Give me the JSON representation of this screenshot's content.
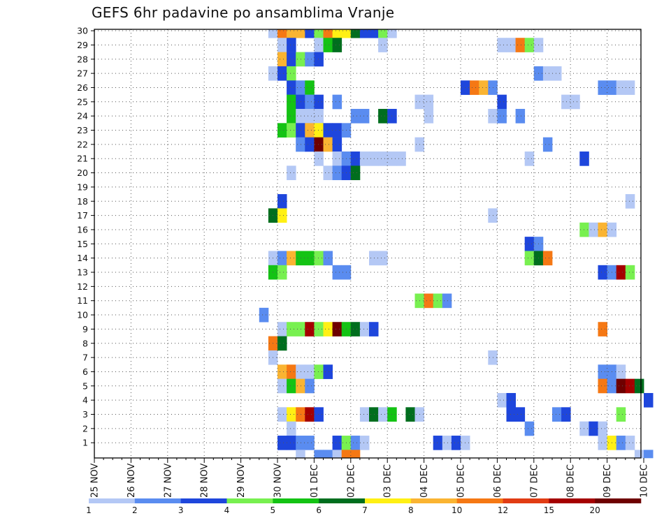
{
  "chart_data": {
    "type": "heatmap",
    "title": "GEFS 6hr padavine po ansamblima Vranje",
    "xlabel": "",
    "ylabel": "",
    "ylim": [
      1,
      30
    ],
    "y_ticks": [
      "1",
      "2",
      "3",
      "4",
      "5",
      "6",
      "7",
      "8",
      "9",
      "10",
      "11",
      "12",
      "13",
      "14",
      "15",
      "16",
      "17",
      "18",
      "19",
      "20",
      "21",
      "22",
      "23",
      "24",
      "25",
      "26",
      "27",
      "28",
      "29",
      "30"
    ],
    "x_start": "25 NOV",
    "x_step_hours": 6,
    "x_tick_labels": [
      "25 NOV",
      "26 NOV",
      "27 NOV",
      "28 NOV",
      "29 NOV",
      "30 NOV",
      "01 DEC",
      "02 DEC",
      "03 DEC",
      "04 DEC",
      "05 DEC",
      "06 DEC",
      "07 DEC",
      "08 DEC",
      "09 DEC",
      "10 DEC"
    ],
    "grid": true,
    "colorbar": {
      "labels": [
        "1",
        "2",
        "3",
        "4",
        "5",
        "6",
        "7",
        "8",
        "10",
        "12",
        "15",
        "20"
      ],
      "colors": [
        "#b4c8f5",
        "#5a8cf0",
        "#1e46dc",
        "#78f050",
        "#14c314",
        "#006e1e",
        "#fff014",
        "#fab432",
        "#f57814",
        "#e13c14",
        "#a50000",
        "#6e0000"
      ]
    },
    "cells": [
      [
        30,
        "29 NOV 18Z",
        1
      ],
      [
        30,
        "30 NOV 00Z",
        10
      ],
      [
        30,
        "30 NOV 06Z",
        8
      ],
      [
        30,
        "30 NOV 12Z",
        8
      ],
      [
        30,
        "30 NOV 18Z",
        3
      ],
      [
        30,
        "01 DEC 00Z",
        4
      ],
      [
        30,
        "01 DEC 06Z",
        10
      ],
      [
        30,
        "01 DEC 12Z",
        7
      ],
      [
        30,
        "01 DEC 18Z",
        7
      ],
      [
        30,
        "02 DEC 00Z",
        6
      ],
      [
        30,
        "02 DEC 06Z",
        3
      ],
      [
        30,
        "02 DEC 12Z",
        3
      ],
      [
        30,
        "02 DEC 18Z",
        4
      ],
      [
        30,
        "03 DEC 00Z",
        1
      ],
      [
        29,
        "30 NOV 00Z",
        1
      ],
      [
        29,
        "30 NOV 06Z",
        3
      ],
      [
        29,
        "01 DEC 00Z",
        1
      ],
      [
        29,
        "01 DEC 06Z",
        5
      ],
      [
        29,
        "01 DEC 12Z",
        6
      ],
      [
        29,
        "02 DEC 18Z",
        1
      ],
      [
        29,
        "06 DEC 00Z",
        1
      ],
      [
        29,
        "06 DEC 06Z",
        1
      ],
      [
        29,
        "06 DEC 12Z",
        10
      ],
      [
        29,
        "06 DEC 18Z",
        4
      ],
      [
        29,
        "07 DEC 00Z",
        1
      ],
      [
        28,
        "30 NOV 00Z",
        8
      ],
      [
        28,
        "30 NOV 06Z",
        3
      ],
      [
        28,
        "30 NOV 12Z",
        4
      ],
      [
        28,
        "30 NOV 18Z",
        2
      ],
      [
        28,
        "01 DEC 00Z",
        3
      ],
      [
        27,
        "29 NOV 18Z",
        1
      ],
      [
        27,
        "30 NOV 00Z",
        3
      ],
      [
        27,
        "30 NOV 06Z",
        4
      ],
      [
        27,
        "07 DEC 00Z",
        2
      ],
      [
        27,
        "07 DEC 06Z",
        1
      ],
      [
        27,
        "07 DEC 12Z",
        1
      ],
      [
        26,
        "30 NOV 06Z",
        3
      ],
      [
        26,
        "30 NOV 12Z",
        2
      ],
      [
        26,
        "30 NOV 18Z",
        5
      ],
      [
        26,
        "05 DEC 00Z",
        3
      ],
      [
        26,
        "05 DEC 06Z",
        10
      ],
      [
        26,
        "05 DEC 12Z",
        8
      ],
      [
        26,
        "05 DEC 18Z",
        2
      ],
      [
        26,
        "08 DEC 18Z",
        2
      ],
      [
        26,
        "09 DEC 00Z",
        2
      ],
      [
        26,
        "09 DEC 06Z",
        1
      ],
      [
        26,
        "09 DEC 12Z",
        1
      ],
      [
        25,
        "30 NOV 06Z",
        5
      ],
      [
        25,
        "30 NOV 12Z",
        3
      ],
      [
        25,
        "30 NOV 18Z",
        2
      ],
      [
        25,
        "01 DEC 00Z",
        3
      ],
      [
        25,
        "01 DEC 12Z",
        2
      ],
      [
        25,
        "03 DEC 18Z",
        1
      ],
      [
        25,
        "04 DEC 00Z",
        1
      ],
      [
        25,
        "06 DEC 00Z",
        3
      ],
      [
        25,
        "07 DEC 18Z",
        1
      ],
      [
        25,
        "08 DEC 00Z",
        1
      ],
      [
        24,
        "30 NOV 06Z",
        5
      ],
      [
        24,
        "30 NOV 12Z",
        1
      ],
      [
        24,
        "30 NOV 18Z",
        1
      ],
      [
        24,
        "01 DEC 00Z",
        1
      ],
      [
        24,
        "02 DEC 00Z",
        2
      ],
      [
        24,
        "02 DEC 06Z",
        2
      ],
      [
        24,
        "02 DEC 18Z",
        6
      ],
      [
        24,
        "03 DEC 00Z",
        3
      ],
      [
        24,
        "04 DEC 00Z",
        1
      ],
      [
        24,
        "05 DEC 18Z",
        1
      ],
      [
        24,
        "06 DEC 00Z",
        2
      ],
      [
        24,
        "06 DEC 12Z",
        2
      ],
      [
        23,
        "30 NOV 00Z",
        5
      ],
      [
        23,
        "30 NOV 06Z",
        4
      ],
      [
        23,
        "30 NOV 12Z",
        3
      ],
      [
        23,
        "30 NOV 18Z",
        8
      ],
      [
        23,
        "01 DEC 00Z",
        7
      ],
      [
        23,
        "01 DEC 06Z",
        3
      ],
      [
        23,
        "01 DEC 12Z",
        3
      ],
      [
        23,
        "01 DEC 18Z",
        2
      ],
      [
        22,
        "30 NOV 12Z",
        2
      ],
      [
        22,
        "30 NOV 18Z",
        3
      ],
      [
        22,
        "01 DEC 00Z",
        20
      ],
      [
        22,
        "01 DEC 06Z",
        8
      ],
      [
        22,
        "01 DEC 12Z",
        3
      ],
      [
        22,
        "03 DEC 18Z",
        1
      ],
      [
        22,
        "07 DEC 06Z",
        2
      ],
      [
        21,
        "01 DEC 00Z",
        1
      ],
      [
        21,
        "01 DEC 12Z",
        1
      ],
      [
        21,
        "01 DEC 18Z",
        2
      ],
      [
        21,
        "02 DEC 00Z",
        3
      ],
      [
        21,
        "02 DEC 06Z",
        1
      ],
      [
        21,
        "02 DEC 12Z",
        1
      ],
      [
        21,
        "02 DEC 18Z",
        1
      ],
      [
        21,
        "03 DEC 00Z",
        1
      ],
      [
        21,
        "03 DEC 06Z",
        1
      ],
      [
        21,
        "06 DEC 18Z",
        1
      ],
      [
        21,
        "08 DEC 06Z",
        3
      ],
      [
        20,
        "30 NOV 06Z",
        1
      ],
      [
        20,
        "01 DEC 06Z",
        1
      ],
      [
        20,
        "01 DEC 12Z",
        2
      ],
      [
        20,
        "01 DEC 18Z",
        3
      ],
      [
        20,
        "02 DEC 00Z",
        6
      ],
      [
        18,
        "30 NOV 00Z",
        3
      ],
      [
        18,
        "09 DEC 12Z",
        1
      ],
      [
        17,
        "29 NOV 18Z",
        6
      ],
      [
        17,
        "30 NOV 00Z",
        7
      ],
      [
        17,
        "05 DEC 18Z",
        1
      ],
      [
        16,
        "08 DEC 06Z",
        4
      ],
      [
        16,
        "08 DEC 12Z",
        1
      ],
      [
        16,
        "08 DEC 18Z",
        8
      ],
      [
        16,
        "09 DEC 00Z",
        1
      ],
      [
        15,
        "06 DEC 18Z",
        3
      ],
      [
        15,
        "07 DEC 00Z",
        2
      ],
      [
        14,
        "29 NOV 18Z",
        1
      ],
      [
        14,
        "30 NOV 00Z",
        2
      ],
      [
        14,
        "30 NOV 06Z",
        8
      ],
      [
        14,
        "30 NOV 12Z",
        5
      ],
      [
        14,
        "30 NOV 18Z",
        5
      ],
      [
        14,
        "01 DEC 00Z",
        4
      ],
      [
        14,
        "01 DEC 06Z",
        2
      ],
      [
        14,
        "02 DEC 12Z",
        1
      ],
      [
        14,
        "02 DEC 18Z",
        1
      ],
      [
        14,
        "06 DEC 18Z",
        4
      ],
      [
        14,
        "07 DEC 00Z",
        6
      ],
      [
        14,
        "07 DEC 06Z",
        10
      ],
      [
        13,
        "29 NOV 18Z",
        5
      ],
      [
        13,
        "30 NOV 00Z",
        4
      ],
      [
        13,
        "01 DEC 12Z",
        2
      ],
      [
        13,
        "01 DEC 18Z",
        2
      ],
      [
        13,
        "08 DEC 18Z",
        3
      ],
      [
        13,
        "09 DEC 00Z",
        2
      ],
      [
        13,
        "09 DEC 06Z",
        15
      ],
      [
        13,
        "09 DEC 12Z",
        4
      ],
      [
        11,
        "03 DEC 18Z",
        4
      ],
      [
        11,
        "04 DEC 00Z",
        10
      ],
      [
        11,
        "04 DEC 06Z",
        4
      ],
      [
        11,
        "04 DEC 12Z",
        2
      ],
      [
        10,
        "29 NOV 12Z",
        2
      ],
      [
        9,
        "30 NOV 00Z",
        1
      ],
      [
        9,
        "30 NOV 06Z",
        4
      ],
      [
        9,
        "30 NOV 12Z",
        4
      ],
      [
        9,
        "30 NOV 18Z",
        15
      ],
      [
        9,
        "01 DEC 00Z",
        4
      ],
      [
        9,
        "01 DEC 06Z",
        7
      ],
      [
        9,
        "01 DEC 12Z",
        20
      ],
      [
        9,
        "01 DEC 18Z",
        5
      ],
      [
        9,
        "02 DEC 00Z",
        6
      ],
      [
        9,
        "02 DEC 06Z",
        1
      ],
      [
        9,
        "02 DEC 12Z",
        3
      ],
      [
        9,
        "08 DEC 18Z",
        10
      ],
      [
        8,
        "29 NOV 18Z",
        10
      ],
      [
        8,
        "30 NOV 00Z",
        6
      ],
      [
        7,
        "29 NOV 18Z",
        1
      ],
      [
        7,
        "05 DEC 18Z",
        1
      ],
      [
        6,
        "30 NOV 00Z",
        8
      ],
      [
        6,
        "30 NOV 06Z",
        10
      ],
      [
        6,
        "30 NOV 12Z",
        1
      ],
      [
        6,
        "30 NOV 18Z",
        1
      ],
      [
        6,
        "01 DEC 00Z",
        4
      ],
      [
        6,
        "01 DEC 06Z",
        3
      ],
      [
        6,
        "08 DEC 18Z",
        2
      ],
      [
        6,
        "09 DEC 00Z",
        2
      ],
      [
        6,
        "09 DEC 06Z",
        1
      ],
      [
        5,
        "30 NOV 00Z",
        1
      ],
      [
        5,
        "30 NOV 06Z",
        5
      ],
      [
        5,
        "30 NOV 12Z",
        8
      ],
      [
        5,
        "30 NOV 18Z",
        2
      ],
      [
        5,
        "08 DEC 18Z",
        10
      ],
      [
        5,
        "09 DEC 00Z",
        2
      ],
      [
        5,
        "09 DEC 06Z",
        20
      ],
      [
        5,
        "09 DEC 12Z",
        15
      ],
      [
        5,
        "09 DEC 18Z",
        6
      ],
      [
        4,
        "06 DEC 00Z",
        1
      ],
      [
        4,
        "06 DEC 06Z",
        3
      ],
      [
        4,
        "10 DEC 00Z",
        3
      ],
      [
        3,
        "30 NOV 00Z",
        1
      ],
      [
        3,
        "30 NOV 06Z",
        7
      ],
      [
        3,
        "30 NOV 12Z",
        10
      ],
      [
        3,
        "30 NOV 18Z",
        15
      ],
      [
        3,
        "01 DEC 00Z",
        3
      ],
      [
        3,
        "02 DEC 06Z",
        1
      ],
      [
        3,
        "02 DEC 12Z",
        6
      ],
      [
        3,
        "02 DEC 18Z",
        1
      ],
      [
        3,
        "03 DEC 00Z",
        5
      ],
      [
        3,
        "03 DEC 12Z",
        6
      ],
      [
        3,
        "03 DEC 18Z",
        1
      ],
      [
        3,
        "06 DEC 06Z",
        3
      ],
      [
        3,
        "06 DEC 12Z",
        3
      ],
      [
        3,
        "07 DEC 12Z",
        2
      ],
      [
        3,
        "07 DEC 18Z",
        3
      ],
      [
        3,
        "09 DEC 06Z",
        4
      ],
      [
        2,
        "30 NOV 06Z",
        1
      ],
      [
        2,
        "06 DEC 18Z",
        2
      ],
      [
        2,
        "08 DEC 06Z",
        1
      ],
      [
        2,
        "08 DEC 12Z",
        3
      ],
      [
        2,
        "08 DEC 18Z",
        1
      ],
      [
        1,
        "30 NOV 00Z",
        3
      ],
      [
        1,
        "30 NOV 06Z",
        3
      ],
      [
        1,
        "30 NOV 12Z",
        2
      ],
      [
        1,
        "30 NOV 18Z",
        2
      ],
      [
        1,
        "01 DEC 12Z",
        3
      ],
      [
        1,
        "01 DEC 18Z",
        4
      ],
      [
        1,
        "02 DEC 00Z",
        2
      ],
      [
        1,
        "02 DEC 06Z",
        1
      ],
      [
        1,
        "04 DEC 06Z",
        3
      ],
      [
        1,
        "04 DEC 12Z",
        1
      ],
      [
        1,
        "04 DEC 18Z",
        3
      ],
      [
        1,
        "05 DEC 00Z",
        1
      ],
      [
        1,
        "08 DEC 18Z",
        1
      ],
      [
        1,
        "09 DEC 00Z",
        7
      ],
      [
        1,
        "09 DEC 06Z",
        2
      ],
      [
        1,
        "09 DEC 12Z",
        1
      ],
      [
        0,
        "30 NOV 12Z",
        1
      ],
      [
        0,
        "01 DEC 00Z",
        2
      ],
      [
        0,
        "01 DEC 06Z",
        2
      ],
      [
        0,
        "01 DEC 12Z",
        1
      ],
      [
        0,
        "01 DEC 18Z",
        10
      ],
      [
        0,
        "02 DEC 00Z",
        10
      ],
      [
        0,
        "09 DEC 18Z",
        1
      ],
      [
        0,
        "10 DEC 00Z",
        2
      ]
    ]
  }
}
